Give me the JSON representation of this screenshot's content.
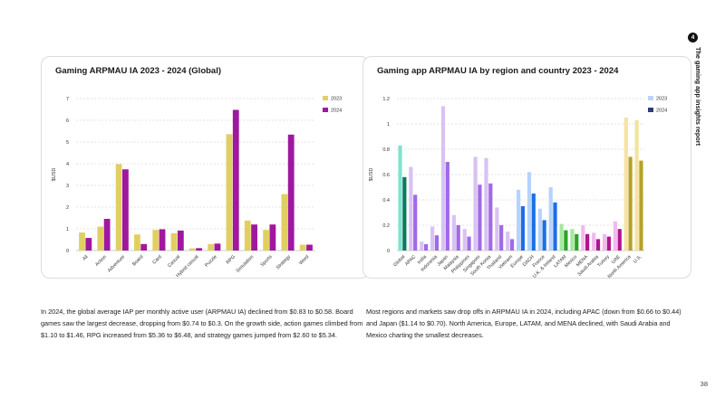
{
  "report": {
    "side_title": "The gaming app insights report",
    "badge": "4",
    "page_number": "38"
  },
  "left": {
    "title": "Gaming ARPMAU IA 2023 - 2024 (Global)",
    "caption": "In 2024, the global average IAP per monthly active user (ARPMAU IA) declined from $0.83 to $0.58. Board games saw the largest decrease, dropping from $0.74 to $0.3. On the growth side, action games climbed from $1.10 to $1.46, RPG increased from $5.36 to $6.48, and strategy games jumped from $2.60 to $5.34."
  },
  "right": {
    "title": "Gaming app ARPMAU IA by region and country 2023 - 2024",
    "caption": "Most regions and markets saw drop offs in ARPMAU IA in 2024, including APAC (down from $0.66 to $0.44) and Japan ($1.14 to $0.70). North America, Europe, LATAM, and MENA declined, with Saudi Arabia and Mexico charting the smallest decreases."
  },
  "chart_data": [
    {
      "type": "bar",
      "categories": [
        "All",
        "Action",
        "Adventure",
        "Board",
        "Card",
        "Casual",
        "Hybrid casual",
        "Puzzle",
        "RPG",
        "Simulation",
        "Sports",
        "Strategy",
        "Word"
      ],
      "series": [
        {
          "name": "2023",
          "values": [
            0.83,
            1.1,
            3.98,
            0.74,
            0.95,
            0.8,
            0.1,
            0.3,
            5.36,
            1.38,
            0.95,
            2.6,
            0.27
          ],
          "color": "#e2cf62"
        },
        {
          "name": "2024",
          "values": [
            0.58,
            1.46,
            3.74,
            0.3,
            0.98,
            0.92,
            0.11,
            0.32,
            6.48,
            1.2,
            1.2,
            5.34,
            0.27
          ],
          "color": "#a0189e"
        }
      ],
      "title": "Gaming ARPMAU IA 2023 - 2024 (Global)",
      "xlabel": "",
      "ylabel": "$USD",
      "ylim": [
        0,
        7
      ],
      "yticks": [
        0,
        1,
        2,
        3,
        4,
        5,
        6,
        7
      ],
      "grid": true,
      "legend": "top-right"
    },
    {
      "type": "bar",
      "categories": [
        "Global",
        "APAC",
        "India",
        "Indonesia",
        "Japan",
        "Malaysia",
        "Philippines",
        "Singapore",
        "South Korea",
        "Thailand",
        "Vietnam",
        "Europe",
        "DACH",
        "France",
        "U.K. & Ireland",
        "LATAM",
        "Mexico",
        "MENA",
        "Saudi Arabia",
        "Turkey",
        "UAE",
        "North America",
        "U.S."
      ],
      "series": [
        {
          "name": "2023",
          "values": [
            0.83,
            0.66,
            0.07,
            0.19,
            1.14,
            0.28,
            0.17,
            0.74,
            0.73,
            0.34,
            0.15,
            0.48,
            0.62,
            0.33,
            0.5,
            0.21,
            0.17,
            0.2,
            0.14,
            0.13,
            0.23,
            1.05,
            1.03
          ]
        },
        {
          "name": "2024",
          "values": [
            0.58,
            0.44,
            0.05,
            0.12,
            0.7,
            0.2,
            0.11,
            0.52,
            0.53,
            0.2,
            0.09,
            0.35,
            0.45,
            0.24,
            0.38,
            0.16,
            0.13,
            0.13,
            0.09,
            0.11,
            0.17,
            0.74,
            0.71
          ]
        }
      ],
      "colors_2023": [
        "#7fe3cf",
        "#d9c2f2",
        "#d9c2f2",
        "#d9c2f2",
        "#d9c2f2",
        "#d9c2f2",
        "#d9c2f2",
        "#d9c2f2",
        "#d9c2f2",
        "#d9c2f2",
        "#d9c2f2",
        "#b7d3fb",
        "#b7d3fb",
        "#b7d3fb",
        "#b7d3fb",
        "#a4e89c",
        "#a4e89c",
        "#f3b9ec",
        "#f3b9ec",
        "#f3b9ec",
        "#f3b9ec",
        "#f4e3a0",
        "#f4e3a0"
      ],
      "colors_2024": [
        "#0a7a5c",
        "#9f6ae6",
        "#9f6ae6",
        "#9f6ae6",
        "#9f6ae6",
        "#9f6ae6",
        "#9f6ae6",
        "#9f6ae6",
        "#9f6ae6",
        "#9f6ae6",
        "#9f6ae6",
        "#1e6fe6",
        "#1e6fe6",
        "#1e6fe6",
        "#1e6fe6",
        "#2ca32c",
        "#2ca32c",
        "#b0158d",
        "#b0158d",
        "#b0158d",
        "#b0158d",
        "#b5a12b",
        "#b5a12b"
      ],
      "legend_colors": {
        "2023": "#bcd3f5",
        "2024": "#2e3c7a"
      },
      "title": "Gaming app ARPMAU IA by region and country 2023 - 2024",
      "xlabel": "",
      "ylabel": "$USD",
      "ylim": [
        0,
        1.2
      ],
      "yticks": [
        "0",
        "0.2",
        "0.4",
        "0.6",
        "0.8",
        "1",
        "1.2"
      ],
      "grid": true,
      "legend": "top-right"
    }
  ]
}
